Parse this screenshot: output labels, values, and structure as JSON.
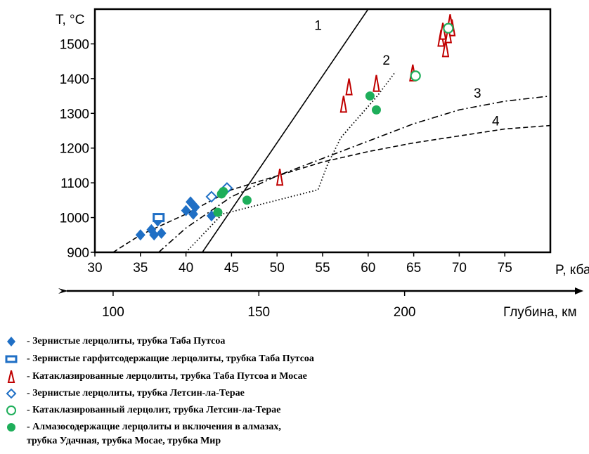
{
  "chart_data": {
    "type": "scatter",
    "title": "",
    "ylabel": "T, °C",
    "xlabel": "P, кбар",
    "xlim": [
      30,
      80
    ],
    "ylim": [
      900,
      1600
    ],
    "x_ticks": [
      30,
      35,
      40,
      45,
      50,
      55,
      60,
      65,
      70,
      75
    ],
    "y_ticks": [
      900,
      1000,
      1100,
      1200,
      1300,
      1400,
      1500
    ],
    "depth_axis": {
      "label": "Глубина, км",
      "ticks": [
        {
          "label": "100",
          "p": 32
        },
        {
          "label": "150",
          "p": 48
        },
        {
          "label": "200",
          "p": 64
        }
      ]
    },
    "curves": [
      {
        "name": "1",
        "style": "solid",
        "points": [
          [
            41.8,
            900
          ],
          [
            60,
            1600
          ]
        ]
      },
      {
        "name": "2",
        "style": "dotted",
        "points": [
          [
            40,
            900
          ],
          [
            44,
            1010
          ],
          [
            50,
            1050
          ],
          [
            54.5,
            1080
          ],
          [
            55.5,
            1150
          ],
          [
            57,
            1230
          ],
          [
            59,
            1290
          ],
          [
            61,
            1350
          ],
          [
            63,
            1420
          ]
        ]
      },
      {
        "name": "3",
        "style": "dashdot",
        "points": [
          [
            37,
            900
          ],
          [
            40,
            970
          ],
          [
            45,
            1060
          ],
          [
            50,
            1120
          ],
          [
            55,
            1170
          ],
          [
            60,
            1220
          ],
          [
            65,
            1270
          ],
          [
            70,
            1310
          ],
          [
            75,
            1335
          ],
          [
            80,
            1350
          ]
        ]
      },
      {
        "name": "4",
        "style": "dashed",
        "points": [
          [
            32,
            900
          ],
          [
            35,
            950
          ],
          [
            40,
            1010
          ],
          [
            45,
            1080
          ],
          [
            50,
            1120
          ],
          [
            55,
            1160
          ],
          [
            60,
            1190
          ],
          [
            65,
            1215
          ],
          [
            70,
            1235
          ],
          [
            75,
            1255
          ],
          [
            80,
            1265
          ]
        ]
      }
    ],
    "curve_labels": [
      {
        "text": "1",
        "x": 54.5,
        "y": 1540
      },
      {
        "text": "2",
        "x": 62,
        "y": 1440
      },
      {
        "text": "3",
        "x": 72,
        "y": 1345
      },
      {
        "text": "4",
        "x": 74,
        "y": 1265
      }
    ],
    "series": [
      {
        "name": "Зернистые лерцолиты, трубка Таба Путсоа",
        "marker": "diamond-filled",
        "color": "#1f6fc5",
        "points": [
          [
            35,
            950
          ],
          [
            36.2,
            965
          ],
          [
            36.5,
            950
          ],
          [
            37.3,
            955
          ],
          [
            36.9,
            990
          ],
          [
            40,
            1020
          ],
          [
            40.5,
            1045
          ],
          [
            40.8,
            1010
          ],
          [
            41,
            1030
          ],
          [
            42.8,
            1005
          ]
        ]
      },
      {
        "name": "Зернистые гарфитсодержащие лерцолиты, трубка Таба Путсоа",
        "marker": "rect-open",
        "color": "#1f6fc5",
        "points": [
          [
            37,
            1000
          ]
        ]
      },
      {
        "name": "Катаклазированные лерцолиты, трубка Таба Путсоа и Мосае",
        "marker": "triangle-open",
        "color": "#c00000",
        "points": [
          [
            50.3,
            1110
          ],
          [
            57.3,
            1320
          ],
          [
            57.9,
            1370
          ],
          [
            60.9,
            1380
          ],
          [
            64.9,
            1410
          ],
          [
            68,
            1510
          ],
          [
            68.5,
            1480
          ],
          [
            68.2,
            1530
          ],
          [
            69.2,
            1540
          ],
          [
            68.8,
            1520
          ],
          [
            69,
            1555
          ]
        ]
      },
      {
        "name": "Зернистые лерцолиты, трубка Летсин-ла-Терае",
        "marker": "diamond-open",
        "color": "#1f6fc5",
        "points": [
          [
            42.8,
            1060
          ],
          [
            44.5,
            1085
          ]
        ]
      },
      {
        "name": "Катаклазированный лерцолит, трубка Летсин-ла-Терае",
        "marker": "circle-open",
        "color": "#1eae5a",
        "points": [
          [
            65.2,
            1408
          ],
          [
            68.8,
            1545
          ]
        ]
      },
      {
        "name": "Алмазосодержащие лерцолиты и включения в алмазах, трубка Удачная, трубка Мосае, трубка Мир",
        "marker": "circle-filled",
        "color": "#1eae5a",
        "points": [
          [
            43.5,
            1015
          ],
          [
            43.9,
            1068
          ],
          [
            44.1,
            1075
          ],
          [
            46.7,
            1050
          ],
          [
            60.2,
            1350
          ],
          [
            60.9,
            1310
          ]
        ]
      }
    ]
  },
  "legend": [
    {
      "line1": "- Зернистые лерцолиты, трубка Таба Путсоа",
      "line2": ""
    },
    {
      "line1": "- Зернистые гарфитсодержащие лерцолиты, трубка Таба Путсоа",
      "line2": ""
    },
    {
      "line1": "- Катаклазированные лерцолиты, трубка Таба Путсоа и Мосае",
      "line2": ""
    },
    {
      "line1": "- Зернистые лерцолиты, трубка Летсин-ла-Терае",
      "line2": ""
    },
    {
      "line1": "- Катаклазированный лерцолит, трубка Летсин-ла-Терае",
      "line2": ""
    },
    {
      "line1": "- Алмазосодержащие лерцолиты и включения в алмазах,",
      "line2": "трубка Удачная, трубка Мосае, трубка Мир"
    }
  ],
  "colors": {
    "blue": "#1f6fc5",
    "red": "#c00000",
    "green": "#1eae5a",
    "axis": "#000000"
  }
}
